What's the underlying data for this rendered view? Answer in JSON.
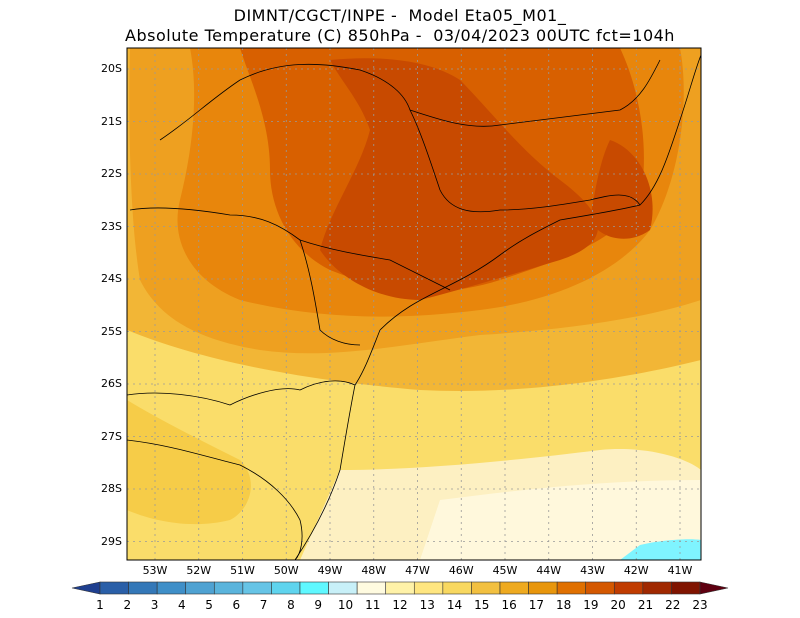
{
  "title_line1": "DIMNT/CGCT/INPE -  Model Eta05_M01_",
  "title_line2": "Absolute Temperature (C) 850hPa -  03/04/2023 00UTC fct=104h",
  "lat_labels": [
    "20S",
    "21S",
    "22S",
    "23S",
    "24S",
    "25S",
    "26S",
    "27S",
    "28S",
    "29S"
  ],
  "lon_labels": [
    "53W",
    "52W",
    "51W",
    "50W",
    "49W",
    "48W",
    "47W",
    "46W",
    "45W",
    "44W",
    "43W",
    "42W",
    "41W"
  ],
  "colorbar": {
    "values": [
      "1",
      "2",
      "3",
      "4",
      "5",
      "6",
      "7",
      "8",
      "9",
      "10",
      "11",
      "12",
      "13",
      "14",
      "15",
      "16",
      "17",
      "18",
      "19",
      "20",
      "21",
      "22",
      "23"
    ],
    "colors": [
      "#1f3f8f",
      "#2a5fa8",
      "#3478b8",
      "#3f8fc8",
      "#4fa2d2",
      "#5ab4dc",
      "#66c4e6",
      "#5fd4ee",
      "#5ff8ff",
      "#c8f0f8",
      "#fffbe0",
      "#fff2a8",
      "#ffe680",
      "#f8d860",
      "#f2c040",
      "#eeaa20",
      "#e8960c",
      "#e07000",
      "#d45800",
      "#c03c00",
      "#a02800",
      "#801400",
      "#5e0010"
    ]
  },
  "map_colors": {
    "hot": "#c84a00",
    "warm1": "#d86000",
    "warm2": "#e8860c",
    "warm3": "#eea020",
    "mid": "#f2b636",
    "cool1": "#f6cc48",
    "cool2": "#fadd6a",
    "light": "#fdf0c2",
    "lighter": "#fff8dc",
    "cyan": "#7ff4ff"
  }
}
